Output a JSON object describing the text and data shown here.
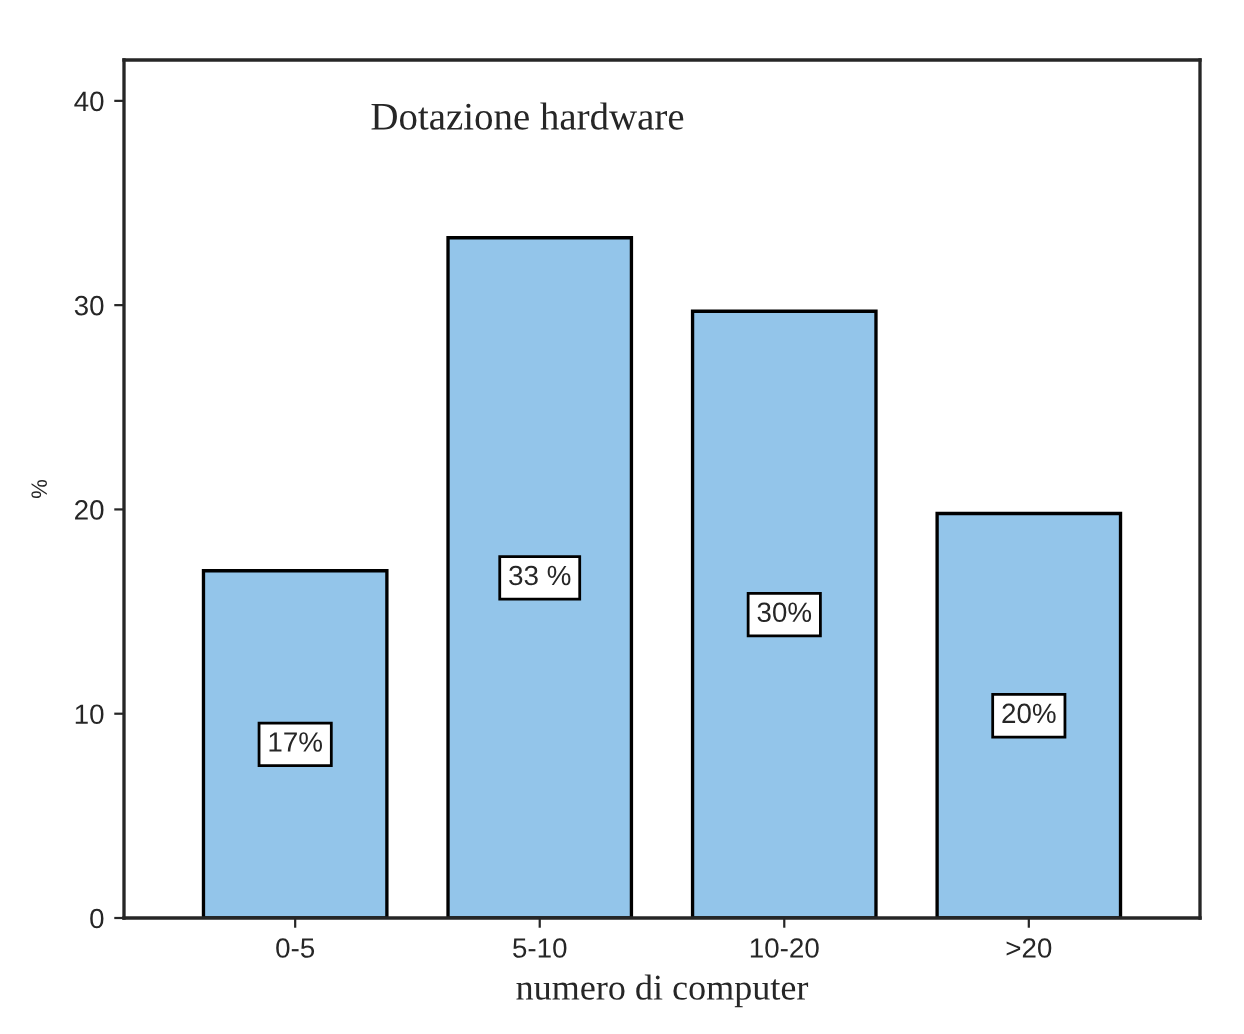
{
  "chart_data": {
    "type": "bar",
    "title": "Dotazione hardware",
    "xlabel": "numero di computer",
    "ylabel": "%",
    "categories": [
      "0-5",
      "5-10",
      "10-20",
      ">20"
    ],
    "values": [
      17,
      33.3,
      29.7,
      19.8
    ],
    "value_labels": [
      "17%",
      "33 %",
      "30%",
      "20%"
    ],
    "color": "#93c5ea",
    "ylim": [
      0,
      42
    ],
    "yticks": [
      0,
      10,
      20,
      30,
      40
    ],
    "grid": false,
    "legend": false
  }
}
